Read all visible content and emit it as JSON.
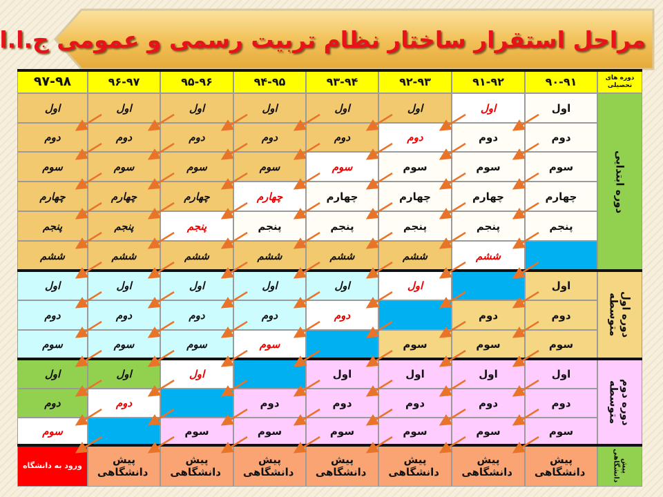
{
  "header": {
    "title": "مراحل استقرار ساختار نظام تربیت رسمی و عمومی ج.ا.ا"
  },
  "table": {
    "header_label": "دوره های تحصیلی",
    "years": [
      "۹۰-۹۱",
      "۹۱-۹۲",
      "۹۲-۹۳",
      "۹۳-۹۴",
      "۹۴-۹۵",
      "۹۵-۹۶",
      "۹۶-۹۷",
      "۹۷-۹۸"
    ],
    "sections": [
      {
        "label": "دوره ابتدایی",
        "rows": [
          [
            "اول",
            "اول",
            "اول",
            "اول",
            "اول",
            "اول",
            "اول",
            "اول"
          ],
          [
            "دوم",
            "دوم",
            "دوم",
            "دوم",
            "دوم",
            "دوم",
            "دوم",
            "دوم"
          ],
          [
            "سوم",
            "سوم",
            "سوم",
            "سوم",
            "سوم",
            "سوم",
            "سوم",
            "سوم"
          ],
          [
            "چهارم",
            "چهارم",
            "چهارم",
            "چهارم",
            "چهارم",
            "چهارم",
            "چهارم",
            "چهارم"
          ],
          [
            "پنجم",
            "پنجم",
            "پنجم",
            "پنجم",
            "پنجم",
            "پنجم",
            "پنجم",
            "پنجم"
          ],
          [
            null,
            "ششم",
            "ششم",
            "ششم",
            "ششم",
            "ششم",
            "ششم",
            "ششم"
          ]
        ]
      },
      {
        "label": "دوره اول متوسطه",
        "rows": [
          [
            "اول",
            null,
            "اول",
            "اول",
            "اول",
            "اول",
            "اول",
            "اول"
          ],
          [
            "دوم",
            "دوم",
            null,
            "دوم",
            "دوم",
            "دوم",
            "دوم",
            "دوم"
          ],
          [
            "سوم",
            "سوم",
            "سوم",
            null,
            "سوم",
            "سوم",
            "سوم",
            "سوم"
          ]
        ]
      },
      {
        "label": "دوره دوم متوسطه",
        "rows": [
          [
            "اول",
            "اول",
            "اول",
            "اول",
            null,
            "اول",
            "اول",
            "اول"
          ],
          [
            "دوم",
            "دوم",
            "دوم",
            "دوم",
            "دوم",
            null,
            "دوم",
            "دوم"
          ],
          [
            "سوم",
            "سوم",
            "سوم",
            "سوم",
            "سوم",
            "سوم",
            null,
            "سوم"
          ]
        ]
      },
      {
        "label": "پیش دانشگاهی",
        "rows": [
          [
            "پیش دانشگاهی",
            "پیش دانشگاهی",
            "پیش دانشگاهی",
            "پیش دانشگاهی",
            "پیش دانشگاهی",
            "پیش دانشگاهی",
            "پیش دانشگاهی",
            "ورود به دانشگاه"
          ]
        ]
      }
    ]
  }
}
